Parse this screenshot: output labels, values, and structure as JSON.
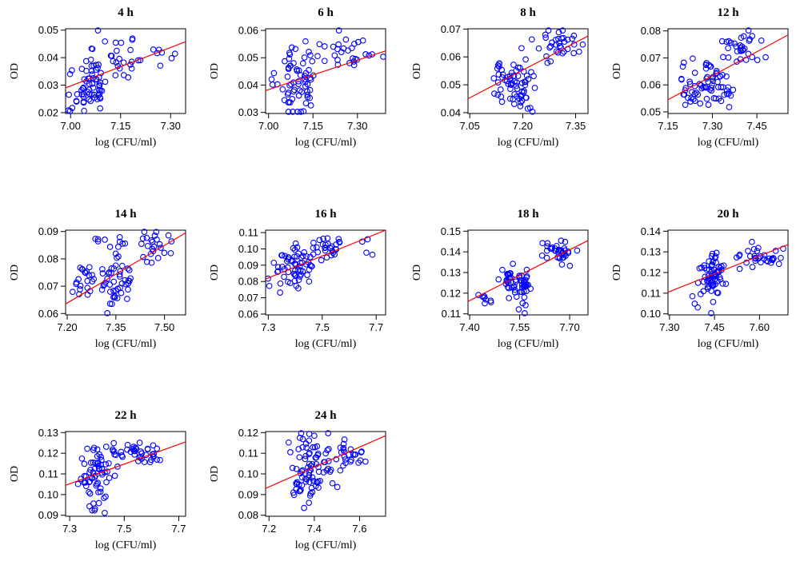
{
  "colors": {
    "point": "#0000ff",
    "fit_line": "#ff0000",
    "axes": "#000000"
  },
  "chart_data": [
    {
      "type": "scatter",
      "title": "4 h",
      "xlabel": "log (CFU/ml)",
      "ylabel": "OD",
      "xlim": [
        6.985,
        7.345
      ],
      "ylim": [
        0.0197,
        0.0505
      ],
      "xticks": [
        "7.00",
        "7.15",
        "7.30"
      ],
      "yticks": [
        "0.02",
        "0.03",
        "0.04",
        "0.05"
      ],
      "fit": {
        "x": [
          6.985,
          7.345
        ],
        "y": [
          0.029,
          0.0458
        ]
      },
      "seed": 11,
      "cloud": {
        "clusters": [
          {
            "cx": 7.05,
            "cy": 0.031,
            "sx": 0.012,
            "sy": 0.006,
            "n": 28
          },
          {
            "cx": 7.08,
            "cy": 0.032,
            "sx": 0.01,
            "sy": 0.007,
            "n": 30
          },
          {
            "cx": 7.16,
            "cy": 0.039,
            "sx": 0.04,
            "sy": 0.004,
            "n": 22
          },
          {
            "cx": 7.0,
            "cy": 0.03,
            "sx": 0.008,
            "sy": 0.006,
            "n": 8
          },
          {
            "cx": 7.27,
            "cy": 0.041,
            "sx": 0.03,
            "sy": 0.003,
            "n": 8
          }
        ]
      }
    },
    {
      "type": "scatter",
      "title": "6 h",
      "xlabel": "log (CFU/ml)",
      "ylabel": "OD",
      "xlim": [
        6.99,
        7.395
      ],
      "ylim": [
        0.0296,
        0.0606
      ],
      "xticks": [
        "7.00",
        "7.15",
        "7.30"
      ],
      "yticks": [
        "0.03",
        "0.04",
        "0.05",
        "0.06"
      ],
      "fit": {
        "x": [
          6.99,
          7.395
        ],
        "y": [
          0.038,
          0.0525
        ]
      },
      "seed": 23,
      "cloud": {
        "clusters": [
          {
            "cx": 7.08,
            "cy": 0.04,
            "sx": 0.012,
            "sy": 0.006,
            "n": 32
          },
          {
            "cx": 7.12,
            "cy": 0.041,
            "sx": 0.015,
            "sy": 0.006,
            "n": 30
          },
          {
            "cx": 7.24,
            "cy": 0.052,
            "sx": 0.06,
            "sy": 0.003,
            "n": 30
          },
          {
            "cx": 7.02,
            "cy": 0.043,
            "sx": 0.01,
            "sy": 0.003,
            "n": 4
          }
        ]
      }
    },
    {
      "type": "scatter",
      "title": "8 h",
      "xlabel": "log (CFU/ml)",
      "ylabel": "OD",
      "xlim": [
        7.045,
        7.385
      ],
      "ylim": [
        0.0397,
        0.0701
      ],
      "xticks": [
        "7.05",
        "7.20",
        "7.35"
      ],
      "yticks": [
        "0.04",
        "0.05",
        "0.06",
        "0.07"
      ],
      "fit": {
        "x": [
          7.045,
          7.385
        ],
        "y": [
          0.045,
          0.0675
        ]
      },
      "seed": 37,
      "cloud": {
        "clusters": [
          {
            "cx": 7.15,
            "cy": 0.05,
            "sx": 0.015,
            "sy": 0.004,
            "n": 30
          },
          {
            "cx": 7.2,
            "cy": 0.051,
            "sx": 0.015,
            "sy": 0.005,
            "n": 34
          },
          {
            "cx": 7.3,
            "cy": 0.065,
            "sx": 0.04,
            "sy": 0.003,
            "n": 34
          },
          {
            "cx": 7.22,
            "cy": 0.044,
            "sx": 0.03,
            "sy": 0.002,
            "n": 4
          }
        ]
      }
    },
    {
      "type": "scatter",
      "title": "12 h",
      "xlabel": "log (CFU/ml)",
      "ylabel": "OD",
      "xlim": [
        7.15,
        7.555
      ],
      "ylim": [
        0.0494,
        0.0808
      ],
      "xticks": [
        "7.15",
        "7.30",
        "7.45"
      ],
      "yticks": [
        "0.05",
        "0.06",
        "0.07",
        "0.08"
      ],
      "fit": {
        "x": [
          7.15,
          7.555
        ],
        "y": [
          0.0545,
          0.0785
        ]
      },
      "seed": 51,
      "cloud": {
        "clusters": [
          {
            "cx": 7.24,
            "cy": 0.057,
            "sx": 0.03,
            "sy": 0.003,
            "n": 26
          },
          {
            "cx": 7.31,
            "cy": 0.06,
            "sx": 0.03,
            "sy": 0.004,
            "n": 38
          },
          {
            "cx": 7.4,
            "cy": 0.074,
            "sx": 0.04,
            "sy": 0.003,
            "n": 32
          },
          {
            "cx": 7.22,
            "cy": 0.066,
            "sx": 0.03,
            "sy": 0.003,
            "n": 8
          }
        ]
      }
    },
    {
      "type": "scatter",
      "title": "14 h",
      "xlabel": "log (CFU/ml)",
      "ylabel": "OD",
      "xlim": [
        7.195,
        7.565
      ],
      "ylim": [
        0.0595,
        0.0905
      ],
      "xticks": [
        "7.20",
        "7.35",
        "7.50"
      ],
      "yticks": [
        "0.06",
        "0.07",
        "0.08",
        "0.09"
      ],
      "fit": {
        "x": [
          7.195,
          7.565
        ],
        "y": [
          0.0635,
          0.0895
        ]
      },
      "seed": 67,
      "cloud": {
        "clusters": [
          {
            "cx": 7.26,
            "cy": 0.071,
            "sx": 0.025,
            "sy": 0.003,
            "n": 22
          },
          {
            "cx": 7.35,
            "cy": 0.071,
            "sx": 0.025,
            "sy": 0.006,
            "n": 46
          },
          {
            "cx": 7.46,
            "cy": 0.084,
            "sx": 0.03,
            "sy": 0.003,
            "n": 24
          },
          {
            "cx": 7.33,
            "cy": 0.086,
            "sx": 0.02,
            "sy": 0.002,
            "n": 10
          }
        ]
      }
    },
    {
      "type": "scatter",
      "title": "16 h",
      "xlabel": "log (CFU/ml)",
      "ylabel": "OD",
      "xlim": [
        7.29,
        7.735
      ],
      "ylim": [
        0.0595,
        0.1115
      ],
      "xticks": [
        "7.3",
        "7.5",
        "7.7"
      ],
      "yticks": [
        "0.06",
        "0.07",
        "0.08",
        "0.09",
        "0.10",
        "0.11"
      ],
      "fit": {
        "x": [
          7.29,
          7.735
        ],
        "y": [
          0.0815,
          0.1115
        ]
      },
      "seed": 79,
      "cloud": {
        "clusters": [
          {
            "cx": 7.38,
            "cy": 0.088,
            "sx": 0.03,
            "sy": 0.006,
            "n": 40
          },
          {
            "cx": 7.43,
            "cy": 0.093,
            "sx": 0.04,
            "sy": 0.006,
            "n": 26
          },
          {
            "cx": 7.52,
            "cy": 0.102,
            "sx": 0.03,
            "sy": 0.003,
            "n": 26
          },
          {
            "cx": 7.67,
            "cy": 0.101,
            "sx": 0.03,
            "sy": 0.005,
            "n": 4
          }
        ]
      }
    },
    {
      "type": "scatter",
      "title": "18 h",
      "xlabel": "log (CFU/ml)",
      "ylabel": "OD",
      "xlim": [
        7.395,
        7.755
      ],
      "ylim": [
        0.1095,
        0.1505
      ],
      "xticks": [
        "7.40",
        "7.55",
        "7.70"
      ],
      "yticks": [
        "0.11",
        "0.12",
        "0.13",
        "0.14",
        "0.15"
      ],
      "fit": {
        "x": [
          7.395,
          7.755
        ],
        "y": [
          0.116,
          0.1455
        ]
      },
      "seed": 97,
      "cloud": {
        "clusters": [
          {
            "cx": 7.51,
            "cy": 0.126,
            "sx": 0.02,
            "sy": 0.004,
            "n": 30
          },
          {
            "cx": 7.56,
            "cy": 0.124,
            "sx": 0.012,
            "sy": 0.003,
            "n": 30
          },
          {
            "cx": 7.67,
            "cy": 0.14,
            "sx": 0.03,
            "sy": 0.003,
            "n": 36
          },
          {
            "cx": 7.45,
            "cy": 0.117,
            "sx": 0.02,
            "sy": 0.003,
            "n": 8
          },
          {
            "cx": 7.56,
            "cy": 0.112,
            "sx": 0.01,
            "sy": 0.001,
            "n": 3
          }
        ]
      }
    },
    {
      "type": "scatter",
      "title": "20 h",
      "xlabel": "log (CFU/ml)",
      "ylabel": "OD",
      "xlim": [
        7.295,
        7.695
      ],
      "ylim": [
        0.0995,
        0.1405
      ],
      "xticks": [
        "7.30",
        "7.45",
        "7.60"
      ],
      "yticks": [
        "0.10",
        "0.11",
        "0.12",
        "0.13",
        "0.14"
      ],
      "fit": {
        "x": [
          7.295,
          7.695
        ],
        "y": [
          0.1105,
          0.1335
        ]
      },
      "seed": 113,
      "cloud": {
        "clusters": [
          {
            "cx": 7.43,
            "cy": 0.117,
            "sx": 0.015,
            "sy": 0.005,
            "n": 34
          },
          {
            "cx": 7.46,
            "cy": 0.119,
            "sx": 0.02,
            "sy": 0.005,
            "n": 30
          },
          {
            "cx": 7.6,
            "cy": 0.128,
            "sx": 0.045,
            "sy": 0.003,
            "n": 34
          },
          {
            "cx": 7.4,
            "cy": 0.106,
            "sx": 0.02,
            "sy": 0.002,
            "n": 5
          }
        ]
      }
    },
    {
      "type": "scatter",
      "title": "22 h",
      "xlabel": "log (CFU/ml)",
      "ylabel": "OD",
      "xlim": [
        7.285,
        7.725
      ],
      "ylim": [
        0.0895,
        0.1305
      ],
      "xticks": [
        "7.3",
        "7.5",
        "7.7"
      ],
      "yticks": [
        "0.09",
        "0.10",
        "0.11",
        "0.12",
        "0.13"
      ],
      "fit": {
        "x": [
          7.285,
          7.725
        ],
        "y": [
          0.1045,
          0.1255
        ]
      },
      "seed": 131,
      "cloud": {
        "clusters": [
          {
            "cx": 7.38,
            "cy": 0.108,
            "sx": 0.03,
            "sy": 0.006,
            "n": 40
          },
          {
            "cx": 7.42,
            "cy": 0.116,
            "sx": 0.03,
            "sy": 0.005,
            "n": 26
          },
          {
            "cx": 7.56,
            "cy": 0.12,
            "sx": 0.05,
            "sy": 0.003,
            "n": 36
          },
          {
            "cx": 7.4,
            "cy": 0.094,
            "sx": 0.02,
            "sy": 0.002,
            "n": 4
          }
        ]
      }
    },
    {
      "type": "scatter",
      "title": "24 h",
      "xlabel": "log (CFU/ml)",
      "ylabel": "OD",
      "xlim": [
        7.185,
        7.715
      ],
      "ylim": [
        0.0795,
        0.1205
      ],
      "xticks": [
        "7.2",
        "7.4",
        "7.6"
      ],
      "yticks": [
        "0.08",
        "0.09",
        "0.10",
        "0.11",
        "0.12"
      ],
      "fit": {
        "x": [
          7.185,
          7.715
        ],
        "y": [
          0.093,
          0.1185
        ]
      },
      "seed": 149,
      "cloud": {
        "clusters": [
          {
            "cx": 7.35,
            "cy": 0.095,
            "sx": 0.03,
            "sy": 0.005,
            "n": 28
          },
          {
            "cx": 7.4,
            "cy": 0.105,
            "sx": 0.04,
            "sy": 0.007,
            "n": 50
          },
          {
            "cx": 7.55,
            "cy": 0.109,
            "sx": 0.05,
            "sy": 0.004,
            "n": 26
          },
          {
            "cx": 7.32,
            "cy": 0.115,
            "sx": 0.03,
            "sy": 0.003,
            "n": 6
          }
        ]
      }
    }
  ]
}
